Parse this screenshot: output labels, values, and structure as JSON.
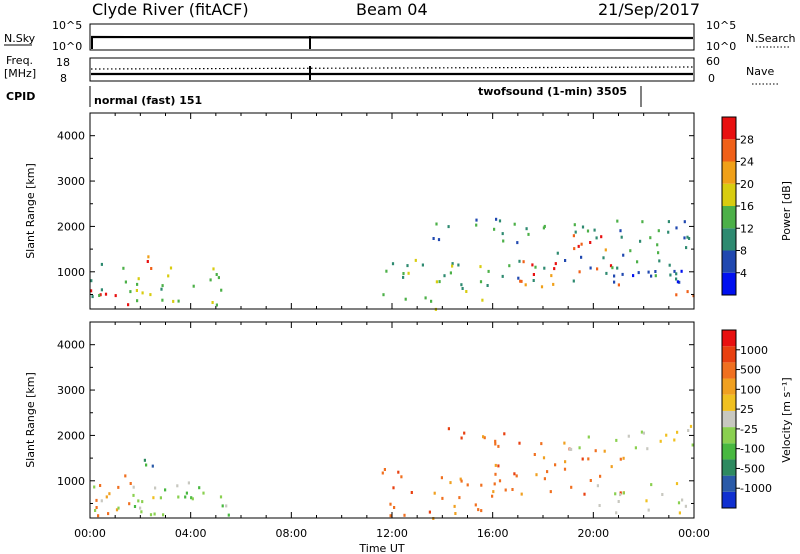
{
  "header": {
    "title": "Clyde River (fitACF)",
    "beam": "Beam 04",
    "date": "21/Sep/2017"
  },
  "top_panels": {
    "nsky_label": "N.Sky",
    "nsky_ticks": [
      "10^5",
      "10^0"
    ],
    "nsearch_label": "N.Search",
    "nsearch_ticks": [
      "10^5",
      "10^0"
    ],
    "freq_label_1": "Freq.",
    "freq_label_2": "[MHz]",
    "freq_ticks": [
      "18",
      "8"
    ],
    "nave_label": "Nave",
    "nave_ticks": [
      "60",
      "0"
    ],
    "cpid_label": "CPID",
    "cpid_left": "normal (fast) 151",
    "cpid_right": "twofsound (1-min) 3505"
  },
  "chart_data": [
    {
      "type": "heatmap",
      "name": "power",
      "ylabel": "Slant Range [km]",
      "xlabel": "Time UT",
      "yticks": [
        "1000",
        "2000",
        "3000",
        "4000"
      ],
      "ylim": [
        180,
        4500
      ],
      "xlim": [
        0,
        24
      ],
      "xticks": [
        "00:00",
        "04:00",
        "08:00",
        "12:00",
        "16:00",
        "20:00",
        "00:00"
      ],
      "colorbar_label": "Power [dB]",
      "colorbar_ticks": [
        "4",
        "8",
        "12",
        "16",
        "20",
        "24",
        "28"
      ],
      "colorbar_colors": [
        "#0010f0",
        "#2048b0",
        "#2e8a70",
        "#4cb048",
        "#d8cc10",
        "#f0a018",
        "#f06018",
        "#e81010"
      ],
      "scatter_regions": [
        {
          "t": [
            0.0,
            1.8
          ],
          "r": [
            200,
            650
          ],
          "level": 7
        },
        {
          "t": [
            1.5,
            2.6
          ],
          "r": [
            1050,
            1500
          ],
          "level": 6
        },
        {
          "t": [
            0.0,
            5.5
          ],
          "r": [
            250,
            1200
          ],
          "level": 3
        },
        {
          "t": [
            11.5,
            16.0
          ],
          "r": [
            200,
            1300
          ],
          "level": 3
        },
        {
          "t": [
            13.5,
            16.5
          ],
          "r": [
            1700,
            2200
          ],
          "level": 2
        },
        {
          "t": [
            16.5,
            21.0
          ],
          "r": [
            700,
            1300
          ],
          "level": 6
        },
        {
          "t": [
            18.5,
            20.5
          ],
          "r": [
            1300,
            1900
          ],
          "level": 6
        },
        {
          "t": [
            16.0,
            24.0
          ],
          "r": [
            800,
            2200
          ],
          "level": 2
        },
        {
          "t": [
            20.0,
            24.0
          ],
          "r": [
            800,
            1100
          ],
          "level": 1
        },
        {
          "t": [
            23.0,
            24.0
          ],
          "r": [
            250,
            700
          ],
          "level": 6
        }
      ]
    },
    {
      "type": "heatmap",
      "name": "velocity",
      "ylabel": "Slant Range [km]",
      "xlabel": "Time UT",
      "yticks": [
        "1000",
        "2000",
        "3000",
        "4000"
      ],
      "ylim": [
        180,
        4500
      ],
      "xlim": [
        0,
        24
      ],
      "xticks": [
        "00:00",
        "04:00",
        "08:00",
        "12:00",
        "16:00",
        "20:00",
        "00:00"
      ],
      "colorbar_label": "Velocity [m s⁻¹]",
      "colorbar_ticks": [
        "1000",
        "500",
        "100",
        "25",
        "-25",
        "-100",
        "-500",
        "-1000"
      ],
      "colorbar_colors": [
        "#1030d0",
        "#2a5aa8",
        "#2e8a60",
        "#48b840",
        "#8ad050",
        "#c8c8c0",
        "#f0c020",
        "#f0a020",
        "#f07020",
        "#e84010",
        "#e81010"
      ],
      "scatter_regions": [
        {
          "t": [
            0.0,
            1.8
          ],
          "r": [
            200,
            1400
          ],
          "level": 8
        },
        {
          "t": [
            1.5,
            2.6
          ],
          "r": [
            1050,
            1500
          ],
          "level": 2
        },
        {
          "t": [
            0.0,
            5.5
          ],
          "r": [
            250,
            1000
          ],
          "level": 4
        },
        {
          "t": [
            0.0,
            3.0
          ],
          "r": [
            250,
            700
          ],
          "level": 5
        },
        {
          "t": [
            11.5,
            16.0
          ],
          "r": [
            200,
            1300
          ],
          "level": 8
        },
        {
          "t": [
            13.5,
            16.5
          ],
          "r": [
            1700,
            2200
          ],
          "level": 8
        },
        {
          "t": [
            16.0,
            21.5
          ],
          "r": [
            700,
            1900
          ],
          "level": 8
        },
        {
          "t": [
            19.0,
            24.0
          ],
          "r": [
            1700,
            2300
          ],
          "level": 5
        },
        {
          "t": [
            20.0,
            24.0
          ],
          "r": [
            300,
            1000
          ],
          "level": 5
        }
      ]
    }
  ]
}
